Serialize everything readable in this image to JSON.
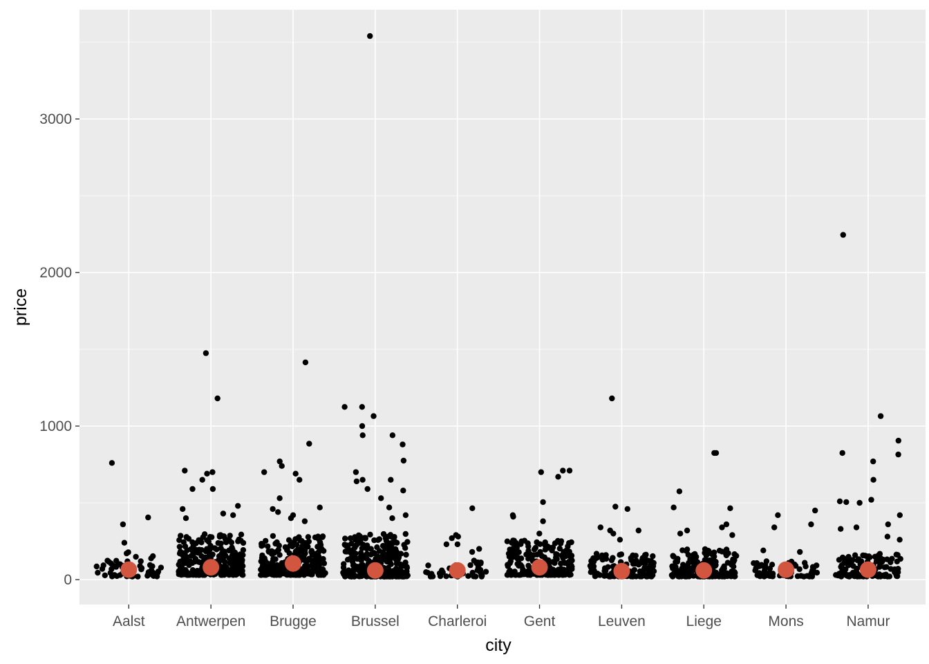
{
  "chart_data": {
    "type": "scatter",
    "subtype": "jittered strip plot with mean overlay",
    "xlabel": "city",
    "ylabel": "price",
    "categories": [
      "Aalst",
      "Antwerpen",
      "Brugge",
      "Brussel",
      "Charleroi",
      "Gent",
      "Leuven",
      "Liege",
      "Mons",
      "Namur"
    ],
    "ylim": [
      -160,
      3720
    ],
    "y_ticks": [
      0,
      1000,
      2000,
      3000
    ],
    "y_tick_labels": [
      "0",
      "1000",
      "2000",
      "3000"
    ],
    "grid": true,
    "legend": "none",
    "panel_background": "#ebebeb",
    "grid_color": "#ffffff",
    "point_color": "#000000",
    "mean_color": "#d2553f",
    "series": [
      {
        "name": "",
        "category_stats": [
          {
            "city": "Aalst",
            "range": [
              20,
              180
            ],
            "count": 55,
            "outliers": [
              760,
              405,
              360,
              240
            ]
          },
          {
            "city": "Antwerpen",
            "range": [
              30,
              300
            ],
            "count": 260,
            "outliers": [
              1180,
              1475,
              710,
              700,
              690,
              650,
              590,
              590,
              480,
              460,
              430,
              420,
              400
            ]
          },
          {
            "city": "Brugge",
            "range": [
              30,
              300
            ],
            "count": 260,
            "outliers": [
              1415,
              885,
              770,
              740,
              700,
              690,
              650,
              530,
              470,
              460,
              440,
              420,
              400,
              380
            ]
          },
          {
            "city": "Brussel",
            "range": [
              20,
              300
            ],
            "count": 300,
            "outliers": [
              3540,
              1125,
              1125,
              1065,
              1000,
              940,
              940,
              880,
              775,
              700,
              650,
              650,
              640,
              590,
              580,
              530,
              470,
              420,
              400
            ]
          },
          {
            "city": "Charleroi",
            "range": [
              20,
              130
            ],
            "count": 45,
            "outliers": [
              465,
              290,
              280,
              270,
              230,
              230,
              200,
              180
            ]
          },
          {
            "city": "Gent",
            "range": [
              30,
              260
            ],
            "count": 230,
            "outliers": [
              710,
              710,
              700,
              670,
              505,
              420,
              410,
              380,
              300
            ]
          },
          {
            "city": "Leuven",
            "range": [
              20,
              170
            ],
            "count": 150,
            "outliers": [
              1180,
              475,
              460,
              340,
              320,
              320,
              300,
              260
            ]
          },
          {
            "city": "Liege",
            "range": [
              20,
              200
            ],
            "count": 170,
            "outliers": [
              825,
              825,
              575,
              470,
              465,
              360,
              340,
              320,
              300,
              290
            ]
          },
          {
            "city": "Mons",
            "range": [
              20,
              120
            ],
            "count": 60,
            "outliers": [
              450,
              420,
              360,
              340,
              190,
              180
            ]
          },
          {
            "city": "Namur",
            "range": [
              20,
              170
            ],
            "count": 130,
            "outliers": [
              2245,
              1065,
              905,
              825,
              815,
              770,
              650,
              520,
              510,
              505,
              500,
              420,
              360,
              340,
              330,
              280,
              260
            ]
          }
        ]
      },
      {
        "name": "",
        "type": "mean",
        "values": [
          65,
          80,
          105,
          60,
          60,
          80,
          55,
          60,
          65,
          65
        ]
      }
    ]
  }
}
